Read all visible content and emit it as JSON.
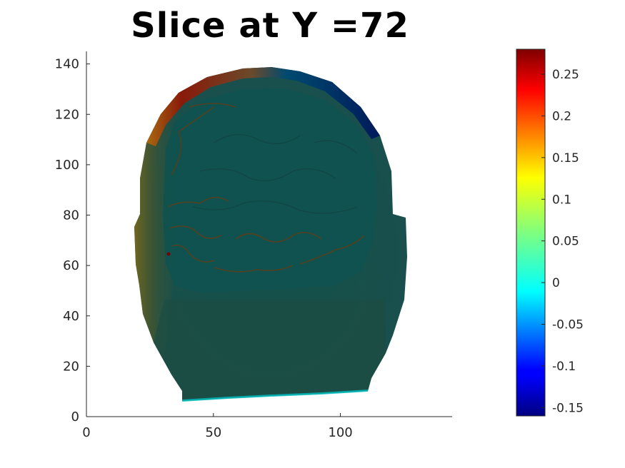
{
  "chart_data": {
    "type": "heatmap",
    "title": "Slice at Y =72",
    "xlabel": "",
    "ylabel": "",
    "xlim": [
      0,
      144
    ],
    "ylim": [
      0,
      145
    ],
    "xticks": [
      0,
      50,
      100
    ],
    "yticks": [
      0,
      20,
      40,
      60,
      80,
      100,
      120,
      140
    ],
    "colormap": "jet",
    "clim": [
      -0.16,
      0.28
    ],
    "colorbar_ticks": [
      -0.15,
      -0.1,
      -0.05,
      0,
      0.05,
      0.1,
      0.15,
      0.2,
      0.25
    ],
    "colorbar_labels": [
      "-0.15",
      "-0.1",
      "-0.05",
      "0",
      "0.05",
      "0.1",
      "0.15",
      "0.2",
      "0.25"
    ],
    "grid": false,
    "image_description_values": {
      "typical_interior_value": 0.0,
      "top_left_scalp_peak": 0.27,
      "top_right_scalp_min": -0.16
    }
  }
}
